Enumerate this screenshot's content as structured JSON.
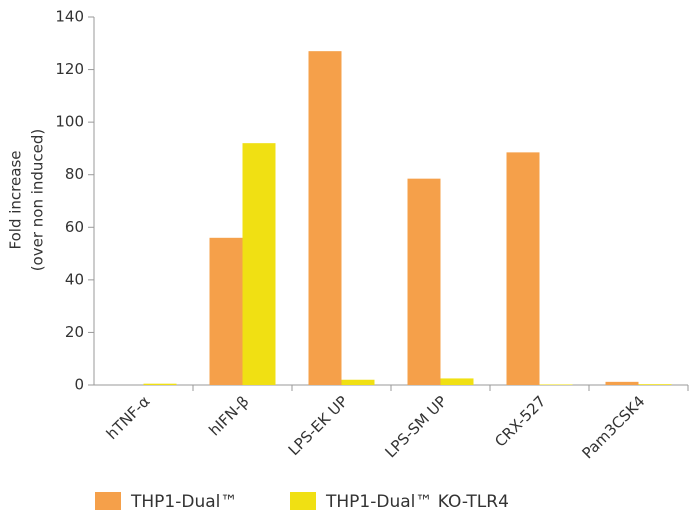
{
  "chart_data": {
    "type": "bar",
    "ylabel": [
      "Fold increase",
      "(over non induced)"
    ],
    "categories": [
      "hTNF-α",
      "hIFN-β",
      "LPS-EK UP",
      "LPS-SM UP",
      "CRX-527",
      "Pam3CSK4"
    ],
    "series": [
      {
        "name": "THP1-Dual™",
        "color": "#f5a04a",
        "values": [
          0,
          56,
          127,
          78.5,
          88.5,
          1.2
        ]
      },
      {
        "name": "THP1-Dual™ KO-TLR4",
        "color": "#f0e013",
        "values": [
          0.5,
          92,
          2,
          2.5,
          0.2,
          0.3
        ]
      }
    ],
    "ylim": [
      0,
      140
    ],
    "yticks": [
      0,
      20,
      40,
      60,
      80,
      100,
      120,
      140
    ]
  }
}
